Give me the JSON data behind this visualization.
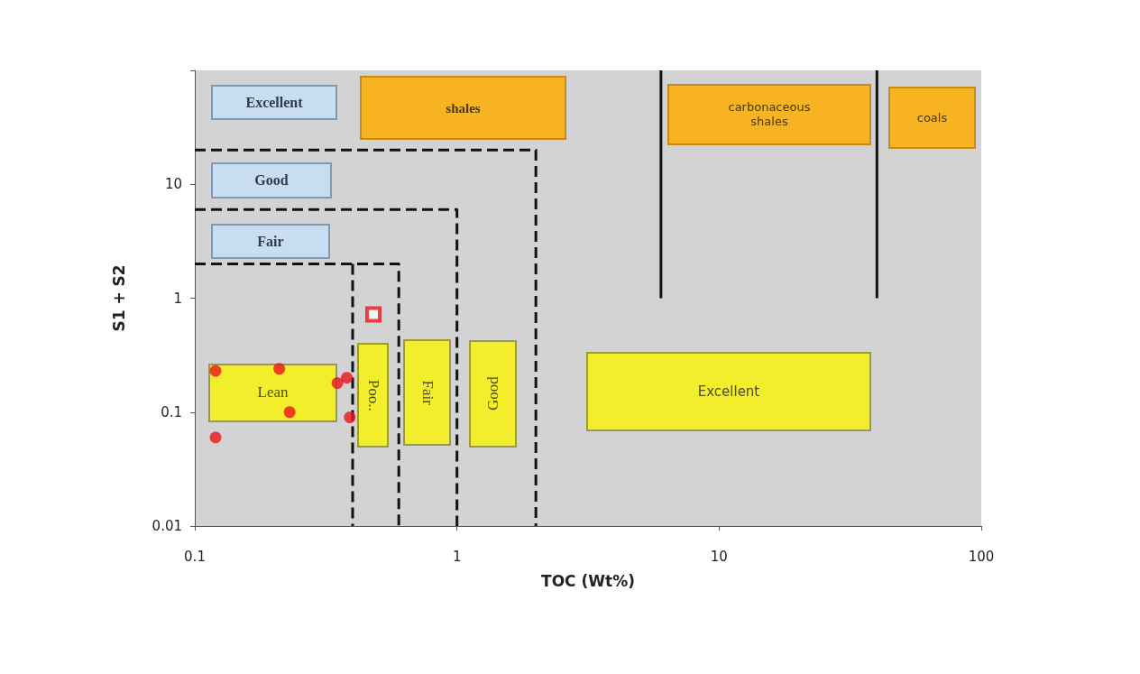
{
  "chart_data": {
    "type": "scatter",
    "xlabel": "TOC (Wt%)",
    "ylabel": "S1 + S2",
    "log": "xy",
    "grid": false,
    "xlim": [
      0.1,
      100
    ],
    "xticks": [
      0.1,
      1,
      10,
      100
    ],
    "ylim": [
      0.01,
      100
    ],
    "yticks": [
      0.01,
      0.1,
      1,
      10,
      {
        "value": 100,
        "label": null
      }
    ],
    "series": [
      {
        "color": "#e8141b",
        "marker": "circle",
        "x": [
          0.12,
          0.21,
          0.12,
          0.23,
          0.35,
          0.38,
          0.39
        ],
        "values": [
          0.23,
          0.24,
          0.06,
          0.1,
          0.18,
          0.2,
          0.09
        ]
      },
      {
        "type": "scatter",
        "color": "#e8141b",
        "marker": "square",
        "x": [
          0.48
        ],
        "values": [
          0.72
        ]
      },
      {
        "type": "line",
        "color": "#111111",
        "line_style": "dashed",
        "marker": "none",
        "x": [
          0.1,
          2,
          2
        ],
        "values": [
          20,
          20,
          0.01
        ]
      },
      {
        "type": "line",
        "color": "#111111",
        "line_style": "dashed",
        "marker": "none",
        "x": [
          0.1,
          1,
          1
        ],
        "values": [
          6,
          6,
          0.01
        ]
      },
      {
        "type": "line",
        "color": "#111111",
        "line_style": "dashed",
        "marker": "none",
        "x": [
          0.1,
          0.6,
          0.6
        ],
        "values": [
          2,
          2,
          0.01
        ]
      },
      {
        "type": "line",
        "color": "#111111",
        "line_style": "dashed",
        "marker": "none",
        "x": [
          0.4,
          0.4
        ],
        "values": [
          2,
          0.01
        ]
      },
      {
        "type": "line",
        "color": "#111111",
        "line_style": "solid",
        "marker": "none",
        "x": [
          6,
          6
        ],
        "values": [
          1,
          100
        ]
      },
      {
        "type": "line",
        "color": "#111111",
        "line_style": "solid",
        "marker": "none",
        "x": [
          40,
          40
        ],
        "values": [
          1,
          100
        ]
      }
    ],
    "annotations": [
      "Excellent",
      "Good",
      "Fair",
      "shales",
      "carbonaceous\nshales",
      "coals",
      "Lean",
      "Poo..",
      "Fair",
      "Good",
      "Excellent"
    ]
  }
}
